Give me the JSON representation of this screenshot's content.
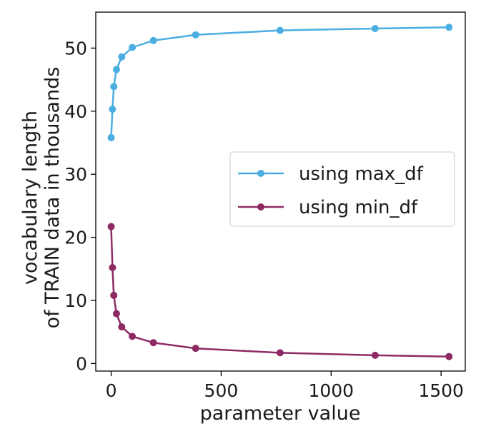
{
  "chart_data": {
    "type": "line",
    "xlabel": "parameter value",
    "ylabel_lines": [
      "vocabulary length",
      "of TRAIN data in thousands"
    ],
    "xlim": [
      -70,
      1610
    ],
    "ylim": [
      -1.2,
      55.7
    ],
    "xticks": [
      0,
      500,
      1000,
      1500
    ],
    "yticks": [
      0,
      10,
      20,
      30,
      40,
      50
    ],
    "grid": false,
    "legend_position": "center-right",
    "series": [
      {
        "name": "using max_df",
        "color": "#4aaee0",
        "x": [
          0,
          6,
          12,
          24,
          48,
          96,
          192,
          384,
          768,
          1200,
          1536
        ],
        "y": [
          35.8,
          40.3,
          43.9,
          46.6,
          48.6,
          50.1,
          51.2,
          52.1,
          52.8,
          53.1,
          53.3
        ]
      },
      {
        "name": "using min_df",
        "color": "#8e2a63",
        "x": [
          0,
          6,
          12,
          24,
          48,
          96,
          192,
          384,
          768,
          1200,
          1536
        ],
        "y": [
          21.7,
          15.2,
          10.8,
          7.9,
          5.8,
          4.3,
          3.3,
          2.4,
          1.7,
          1.3,
          1.1
        ]
      }
    ]
  }
}
